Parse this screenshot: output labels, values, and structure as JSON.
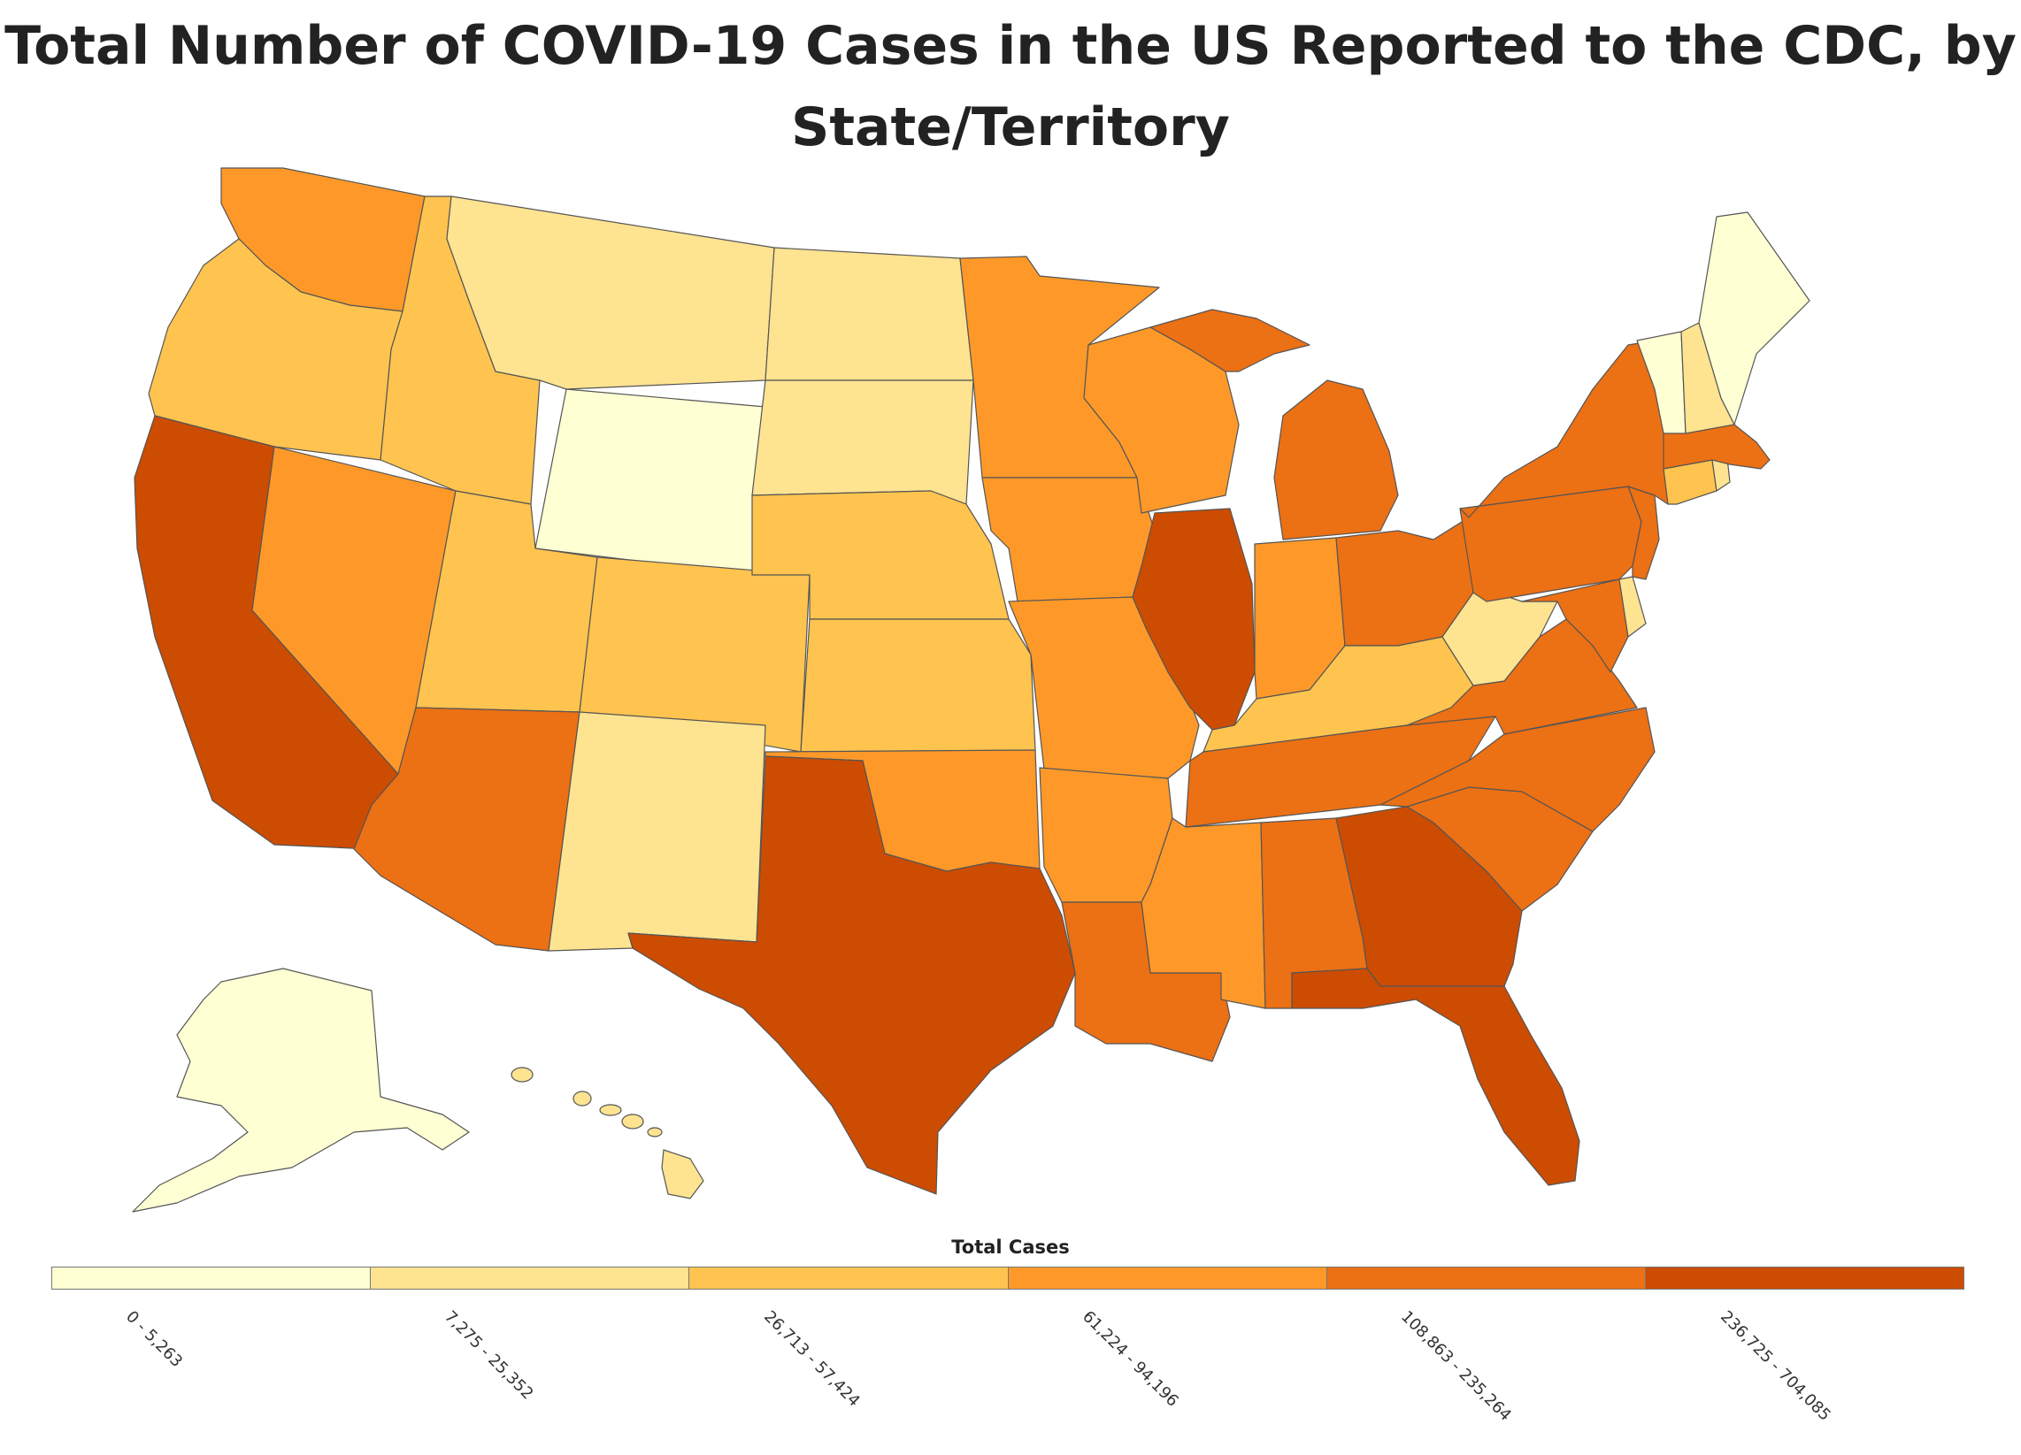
{
  "title": {
    "line1": "Total Number of COVID-19 Cases in the US Reported to the CDC, by",
    "line2": "State/Territory"
  },
  "legend": {
    "title": "Total Cases",
    "bins": [
      {
        "label": "0 - 5,263",
        "color": "#ffffd4"
      },
      {
        "label": "7,275 - 25,352",
        "color": "#fee391"
      },
      {
        "label": "26,713 - 57,424",
        "color": "#fec44f"
      },
      {
        "label": "61,224 - 94,196",
        "color": "#fe9929"
      },
      {
        "label": "108,863 - 235,264",
        "color": "#ec7014"
      },
      {
        "label": "236,725 - 704,085",
        "color": "#cc4c02"
      }
    ]
  },
  "states": [
    {
      "name": "Washington",
      "bin": 3
    },
    {
      "name": "Oregon",
      "bin": 2
    },
    {
      "name": "California",
      "bin": 5
    },
    {
      "name": "Nevada",
      "bin": 3
    },
    {
      "name": "Idaho",
      "bin": 2
    },
    {
      "name": "Montana",
      "bin": 1
    },
    {
      "name": "Wyoming",
      "bin": 0
    },
    {
      "name": "Utah",
      "bin": 2
    },
    {
      "name": "Arizona",
      "bin": 4
    },
    {
      "name": "Colorado",
      "bin": 2
    },
    {
      "name": "New Mexico",
      "bin": 1
    },
    {
      "name": "North Dakota",
      "bin": 1
    },
    {
      "name": "South Dakota",
      "bin": 1
    },
    {
      "name": "Nebraska",
      "bin": 2
    },
    {
      "name": "Kansas",
      "bin": 2
    },
    {
      "name": "Oklahoma",
      "bin": 3
    },
    {
      "name": "Texas",
      "bin": 5
    },
    {
      "name": "Minnesota",
      "bin": 3
    },
    {
      "name": "Iowa",
      "bin": 3
    },
    {
      "name": "Missouri",
      "bin": 3
    },
    {
      "name": "Arkansas",
      "bin": 3
    },
    {
      "name": "Louisiana",
      "bin": 4
    },
    {
      "name": "Wisconsin",
      "bin": 3
    },
    {
      "name": "Illinois",
      "bin": 5
    },
    {
      "name": "Michigan",
      "bin": 4
    },
    {
      "name": "Indiana",
      "bin": 3
    },
    {
      "name": "Ohio",
      "bin": 4
    },
    {
      "name": "Kentucky",
      "bin": 2
    },
    {
      "name": "Tennessee",
      "bin": 4
    },
    {
      "name": "Mississippi",
      "bin": 3
    },
    {
      "name": "Alabama",
      "bin": 4
    },
    {
      "name": "Georgia",
      "bin": 5
    },
    {
      "name": "Florida",
      "bin": 5
    },
    {
      "name": "South Carolina",
      "bin": 4
    },
    {
      "name": "North Carolina",
      "bin": 4
    },
    {
      "name": "Virginia",
      "bin": 4
    },
    {
      "name": "West Virginia",
      "bin": 1
    },
    {
      "name": "Maryland",
      "bin": 4
    },
    {
      "name": "Delaware",
      "bin": 1
    },
    {
      "name": "Pennsylvania",
      "bin": 4
    },
    {
      "name": "New Jersey",
      "bin": 4
    },
    {
      "name": "New York",
      "bin": 4
    },
    {
      "name": "Connecticut",
      "bin": 2
    },
    {
      "name": "Rhode Island",
      "bin": 1
    },
    {
      "name": "Massachusetts",
      "bin": 4
    },
    {
      "name": "Vermont",
      "bin": 0
    },
    {
      "name": "New Hampshire",
      "bin": 1
    },
    {
      "name": "Maine",
      "bin": 0
    },
    {
      "name": "Alaska",
      "bin": 0
    },
    {
      "name": "Hawaii",
      "bin": 1
    }
  ]
}
